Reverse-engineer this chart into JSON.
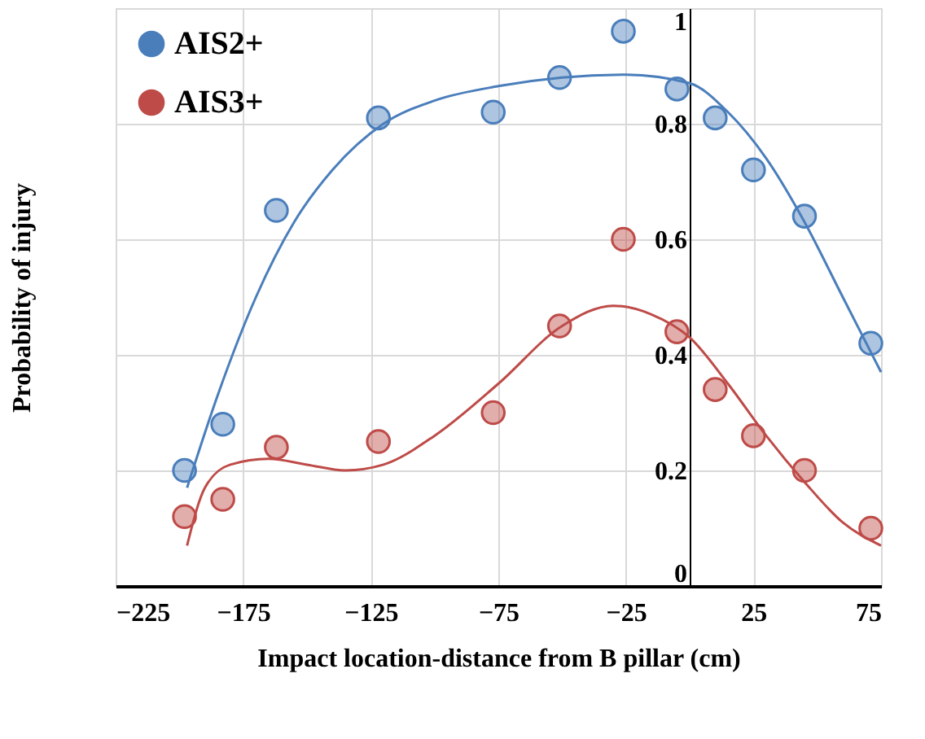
{
  "chart_data": {
    "type": "scatter",
    "xlabel": "Impact location-distance from B pillar (cm)",
    "ylabel": "Probability of injury",
    "xlim": [
      -225,
      75
    ],
    "xticks": [
      -225,
      -175,
      -125,
      -75,
      -25,
      25,
      75
    ],
    "ylim": [
      0,
      1
    ],
    "yticks": [
      0,
      0.2,
      0.4,
      0.6,
      0.8,
      1
    ],
    "grid": true,
    "legend": "top left",
    "marker": "circle",
    "x": [
      -198,
      -183,
      -162,
      -122,
      -77,
      -51,
      -26,
      -5,
      10,
      25,
      45,
      71
    ],
    "series": [
      {
        "name": "AIS2+",
        "color": "#4a7ebb",
        "values": [
          0.2,
          0.28,
          0.65,
          0.81,
          0.82,
          0.88,
          0.96,
          0.86,
          0.81,
          0.72,
          0.64,
          0.42
        ]
      },
      {
        "name": "AIS3+",
        "color": "#be4b48",
        "values": [
          0.12,
          0.15,
          0.24,
          0.25,
          0.3,
          0.45,
          0.6,
          0.44,
          0.34,
          0.26,
          0.2,
          0.1
        ]
      },
      {
        "type": "line",
        "color": "#4a7ebb",
        "line_style": "solid",
        "marker": "none",
        "x": [
          -197,
          -185,
          -170,
          -155,
          -140,
          -120,
          -100,
          -75,
          -50,
          -25,
          0,
          15,
          30,
          45,
          60,
          75
        ],
        "values": [
          0.17,
          0.33,
          0.5,
          0.63,
          0.72,
          0.8,
          0.84,
          0.865,
          0.88,
          0.885,
          0.87,
          0.82,
          0.74,
          0.63,
          0.5,
          0.37
        ]
      },
      {
        "type": "line",
        "color": "#be4b48",
        "line_style": "solid",
        "marker": "none",
        "x": [
          -197,
          -190,
          -180,
          -165,
          -150,
          -135,
          -120,
          -100,
          -75,
          -50,
          -30,
          -15,
          0,
          15,
          30,
          45,
          60,
          75
        ],
        "values": [
          0.07,
          0.17,
          0.21,
          0.22,
          0.21,
          0.2,
          0.21,
          0.26,
          0.35,
          0.45,
          0.485,
          0.47,
          0.43,
          0.35,
          0.26,
          0.18,
          0.11,
          0.07
        ]
      }
    ]
  }
}
